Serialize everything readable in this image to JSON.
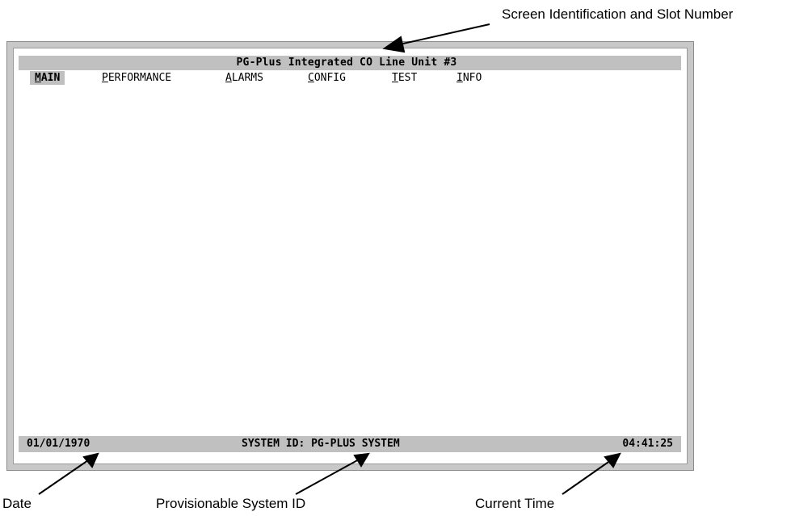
{
  "screen": {
    "title": "PG-Plus Integrated CO Line Unit #3",
    "tabs": [
      {
        "hotkey": "M",
        "rest": "AIN",
        "active": true
      },
      {
        "hotkey": "P",
        "rest": "ERFORMANCE",
        "active": false
      },
      {
        "hotkey": "A",
        "rest": "LARMS",
        "active": false
      },
      {
        "hotkey": "C",
        "rest": "ONFIG",
        "active": false
      },
      {
        "hotkey": "T",
        "rest": "EST",
        "active": false
      },
      {
        "hotkey": "I",
        "rest": "NFO",
        "active": false
      }
    ],
    "status": {
      "date": "01/01/1970",
      "system_id": "SYSTEM ID: PG-PLUS SYSTEM",
      "time": "04:41:25"
    }
  },
  "annotations": {
    "screen_id": "Screen Identification and Slot Number",
    "date": "Date",
    "system_id": "Provisionable System ID",
    "time": "Current Time"
  },
  "colors": {
    "bar_gray": "#c0c0c0",
    "frame_gray": "#c8c8c8"
  }
}
